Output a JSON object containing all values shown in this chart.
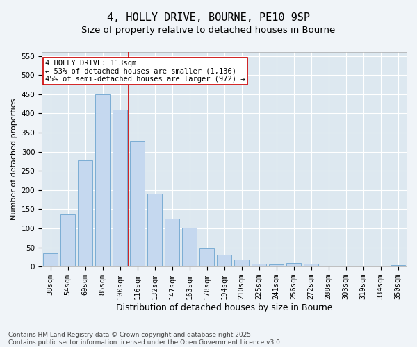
{
  "title": "4, HOLLY DRIVE, BOURNE, PE10 9SP",
  "subtitle": "Size of property relative to detached houses in Bourne",
  "xlabel": "Distribution of detached houses by size in Bourne",
  "ylabel": "Number of detached properties",
  "categories": [
    "38sqm",
    "54sqm",
    "69sqm",
    "85sqm",
    "100sqm",
    "116sqm",
    "132sqm",
    "147sqm",
    "163sqm",
    "178sqm",
    "194sqm",
    "210sqm",
    "225sqm",
    "241sqm",
    "256sqm",
    "272sqm",
    "288sqm",
    "303sqm",
    "319sqm",
    "334sqm",
    "350sqm"
  ],
  "values": [
    35,
    137,
    277,
    450,
    410,
    328,
    190,
    125,
    101,
    47,
    32,
    18,
    8,
    5,
    9,
    8,
    3,
    2,
    1,
    1,
    4
  ],
  "bar_color": "#c5d8ef",
  "bar_edge_color": "#7badd4",
  "vline_color": "#cc0000",
  "annotation_text": "4 HOLLY DRIVE: 113sqm\n← 53% of detached houses are smaller (1,136)\n45% of semi-detached houses are larger (972) →",
  "annotation_box_color": "#ffffff",
  "annotation_box_edge_color": "#cc0000",
  "ylim": [
    0,
    560
  ],
  "yticks": [
    0,
    50,
    100,
    150,
    200,
    250,
    300,
    350,
    400,
    450,
    500,
    550
  ],
  "fig_background_color": "#f0f4f8",
  "plot_background_color": "#dde8f0",
  "grid_color": "#ffffff",
  "footer_line1": "Contains HM Land Registry data © Crown copyright and database right 2025.",
  "footer_line2": "Contains public sector information licensed under the Open Government Licence v3.0.",
  "title_fontsize": 11,
  "subtitle_fontsize": 9.5,
  "xlabel_fontsize": 9,
  "ylabel_fontsize": 8,
  "tick_fontsize": 7.5,
  "footer_fontsize": 6.5,
  "annot_fontsize": 7.5
}
